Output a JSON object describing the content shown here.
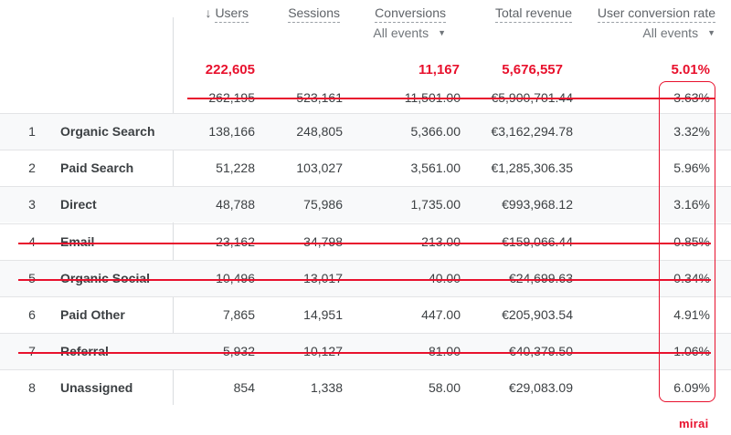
{
  "columns": {
    "users": {
      "label": "Users",
      "sort_icon": "arrow-down-icon"
    },
    "sessions": {
      "label": "Sessions"
    },
    "conversions": {
      "label": "Conversions",
      "filter": "All events"
    },
    "total_revenue": {
      "label": "Total revenue"
    },
    "user_conversion_rate": {
      "label": "User conversion rate",
      "filter": "All events"
    }
  },
  "totals_highlight": {
    "users": "222,605",
    "conversions": "11,167",
    "total_revenue": "5,676,557",
    "user_conversion_rate": "5.01%"
  },
  "totals_original": {
    "users": "262,195",
    "sessions": "523,161",
    "conversions": "11,501.00",
    "total_revenue": "€5,900,701.44",
    "user_conversion_rate": "3.63%"
  },
  "rows": [
    {
      "index": "1",
      "channel": "Organic Search",
      "users": "138,166",
      "sessions": "248,805",
      "conversions": "5,366.00",
      "revenue": "€3,162,294.78",
      "rate": "3.32%",
      "struck": false
    },
    {
      "index": "2",
      "channel": "Paid Search",
      "users": "51,228",
      "sessions": "103,027",
      "conversions": "3,561.00",
      "revenue": "€1,285,306.35",
      "rate": "5.96%",
      "struck": false
    },
    {
      "index": "3",
      "channel": "Direct",
      "users": "48,788",
      "sessions": "75,986",
      "conversions": "1,735.00",
      "revenue": "€993,968.12",
      "rate": "3.16%",
      "struck": false
    },
    {
      "index": "4",
      "channel": "Email",
      "users": "23,162",
      "sessions": "34,798",
      "conversions": "213.00",
      "revenue": "€159,066.44",
      "rate": "0.85%",
      "struck": true
    },
    {
      "index": "5",
      "channel": "Organic Social",
      "users": "10,496",
      "sessions": "13,017",
      "conversions": "40.00",
      "revenue": "€24,699.63",
      "rate": "0.34%",
      "struck": true
    },
    {
      "index": "6",
      "channel": "Paid Other",
      "users": "7,865",
      "sessions": "14,951",
      "conversions": "447.00",
      "revenue": "€205,903.54",
      "rate": "4.91%",
      "struck": false
    },
    {
      "index": "7",
      "channel": "Referral",
      "users": "5,932",
      "sessions": "10,127",
      "conversions": "81.00",
      "revenue": "€40,379.50",
      "rate": "1.06%",
      "struck": true
    },
    {
      "index": "8",
      "channel": "Unassigned",
      "users": "854",
      "sessions": "1,338",
      "conversions": "58.00",
      "revenue": "€29,083.09",
      "rate": "6.09%",
      "struck": false
    }
  ],
  "brand": "mirai",
  "colors": {
    "accent": "#e8112d",
    "text": "#3c4043",
    "muted": "#5f6368",
    "row_shade": "#f8f9fa",
    "divider": "#dadce0"
  }
}
